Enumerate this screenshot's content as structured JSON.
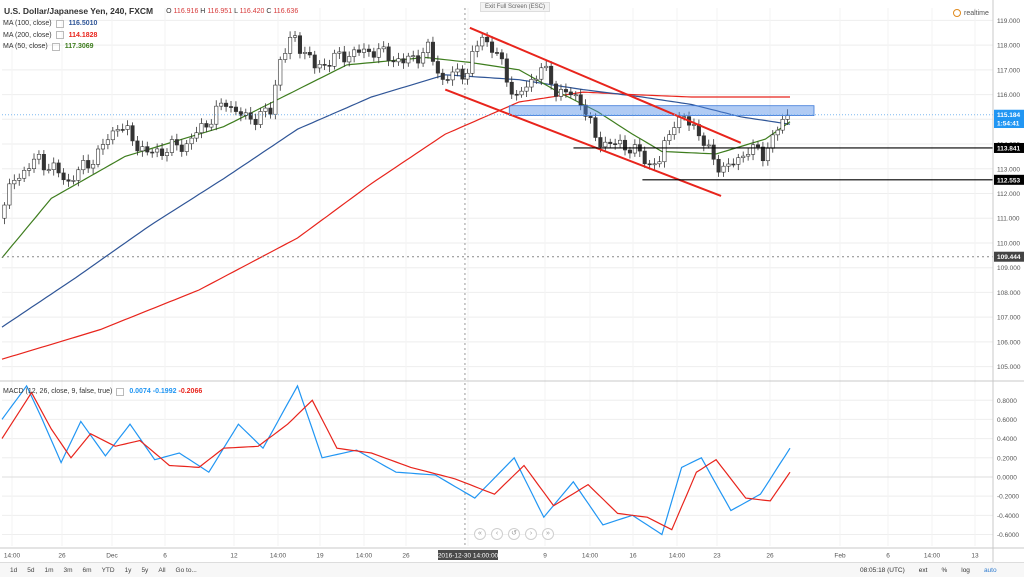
{
  "header": {
    "symbol": "U.S. Dollar/Japanese Yen, 240, FXCM",
    "open_label": "O",
    "open": "116.916",
    "high_label": "H",
    "high": "116.951",
    "low_label": "L",
    "low": "116.420",
    "close_label": "C",
    "close": "116.636",
    "exit_fullscreen": "Exit Full Screen (ESC)",
    "realtime_label": "realtime"
  },
  "legend": [
    {
      "name": "MA (100, close)",
      "value": "116.5010",
      "color": "#2f5597"
    },
    {
      "name": "MA (200, close)",
      "value": "114.1828",
      "color": "#e8241c"
    },
    {
      "name": "MA (50, close)",
      "value": "117.3069",
      "color": "#3e7d1e"
    }
  ],
  "macd_legend": {
    "name": "MACD (12, 26, close, 9, false, true)",
    "values": [
      "0.0074",
      "-0.1992",
      "-0.2066"
    ],
    "colors": [
      "#2196f3",
      "#2196f3",
      "#e8241c"
    ]
  },
  "price_badges": [
    {
      "value": "115.184",
      "color": "#2196f3"
    },
    {
      "value": "1:54:41",
      "color": "#2196f3"
    },
    {
      "value": "113.841",
      "color": "#000000"
    },
    {
      "value": "112.553",
      "color": "#000000"
    },
    {
      "value": "109.444",
      "color": "#444444"
    }
  ],
  "x_ticks": [
    "14:00",
    "26",
    "Dec",
    "6",
    "12",
    "14:00",
    "19",
    "14:00",
    "26",
    "2016-12-30 14:00:00",
    "9",
    "14:00",
    "16",
    "14:00",
    "23",
    "26",
    "Feb",
    "6",
    "14:00",
    "13"
  ],
  "bottom_bar": {
    "timeframes": [
      "1d",
      "5d",
      "1m",
      "3m",
      "6m",
      "YTD",
      "1y",
      "5y",
      "All",
      "Go to..."
    ],
    "clock": "08:05:18 (UTC)",
    "toggles": [
      "ext",
      "%",
      "log",
      "auto"
    ]
  },
  "nav_buttons": [
    "«",
    "‹",
    "↺",
    "›",
    "»"
  ],
  "chart_data": {
    "type": "candlestick",
    "price_axis": {
      "ylim": [
        104.5,
        119.5
      ],
      "ticks": [
        "119.000",
        "118.000",
        "117.000",
        "116.000",
        "115.000",
        "114.000",
        "113.000",
        "112.000",
        "111.000",
        "110.000",
        "109.000",
        "108.000",
        "107.000",
        "106.000",
        "105.000"
      ]
    },
    "macd_axis": {
      "ylim": [
        -0.72,
        0.98
      ],
      "ticks": [
        "0.8000",
        "0.6000",
        "0.4000",
        "0.2000",
        "0.0000",
        "-0.2000",
        "-0.4000",
        "-0.6000"
      ]
    },
    "candle_count": 160,
    "close_path": [
      [
        0,
        111.0
      ],
      [
        3,
        112.6
      ],
      [
        8,
        113.4
      ],
      [
        14,
        112.5
      ],
      [
        20,
        113.6
      ],
      [
        24,
        114.8
      ],
      [
        30,
        113.6
      ],
      [
        38,
        114.0
      ],
      [
        46,
        115.7
      ],
      [
        50,
        115.0
      ],
      [
        55,
        115.3
      ],
      [
        57,
        117.5
      ],
      [
        60,
        118.3
      ],
      [
        64,
        117.1
      ],
      [
        70,
        117.6
      ],
      [
        76,
        117.8
      ],
      [
        82,
        117.3
      ],
      [
        87,
        117.8
      ],
      [
        90,
        116.6
      ],
      [
        95,
        117.0
      ],
      [
        98,
        118.4
      ],
      [
        101,
        117.6
      ],
      [
        105,
        115.8
      ],
      [
        110,
        117.1
      ],
      [
        113,
        116.2
      ],
      [
        118,
        115.8
      ],
      [
        121,
        114.2
      ],
      [
        124,
        114.0
      ],
      [
        128,
        113.9
      ],
      [
        132,
        113.2
      ],
      [
        134,
        113.3
      ],
      [
        137,
        115.0
      ],
      [
        141,
        114.8
      ],
      [
        145,
        113.3
      ],
      [
        148,
        113.0
      ],
      [
        152,
        113.8
      ],
      [
        155,
        113.6
      ],
      [
        160,
        115.2
      ]
    ],
    "ma50_path": [
      [
        0,
        109.4
      ],
      [
        10,
        111.8
      ],
      [
        25,
        113.5
      ],
      [
        45,
        114.7
      ],
      [
        58,
        116.0
      ],
      [
        70,
        117.2
      ],
      [
        86,
        117.5
      ],
      [
        95,
        117.3
      ],
      [
        105,
        117.0
      ],
      [
        113,
        116.1
      ],
      [
        121,
        115.3
      ],
      [
        128,
        114.4
      ],
      [
        134,
        113.7
      ],
      [
        145,
        113.6
      ],
      [
        155,
        114.2
      ],
      [
        160,
        114.9
      ]
    ],
    "ma100_path": [
      [
        0,
        106.6
      ],
      [
        15,
        108.6
      ],
      [
        30,
        110.7
      ],
      [
        45,
        112.6
      ],
      [
        60,
        114.6
      ],
      [
        75,
        115.9
      ],
      [
        90,
        116.8
      ],
      [
        105,
        116.6
      ],
      [
        118,
        116.2
      ],
      [
        130,
        115.9
      ],
      [
        140,
        115.6
      ],
      [
        150,
        115.1
      ],
      [
        160,
        114.8
      ]
    ],
    "ma200_path": [
      [
        0,
        105.3
      ],
      [
        20,
        106.5
      ],
      [
        40,
        108.1
      ],
      [
        60,
        110.2
      ],
      [
        75,
        112.4
      ],
      [
        90,
        114.4
      ],
      [
        105,
        115.7
      ],
      [
        118,
        116.1
      ],
      [
        128,
        116.0
      ],
      [
        140,
        115.9
      ],
      [
        160,
        115.9
      ]
    ],
    "macd_path": [
      [
        0,
        0.6
      ],
      [
        5,
        0.95
      ],
      [
        8,
        0.62
      ],
      [
        12,
        0.15
      ],
      [
        16,
        0.58
      ],
      [
        21,
        0.22
      ],
      [
        26,
        0.55
      ],
      [
        31,
        0.18
      ],
      [
        36,
        0.25
      ],
      [
        42,
        0.05
      ],
      [
        48,
        0.55
      ],
      [
        53,
        0.3
      ],
      [
        60,
        0.95
      ],
      [
        65,
        0.2
      ],
      [
        72,
        0.28
      ],
      [
        80,
        0.05
      ],
      [
        88,
        0.02
      ],
      [
        96,
        -0.22
      ],
      [
        104,
        0.2
      ],
      [
        110,
        -0.42
      ],
      [
        116,
        -0.05
      ],
      [
        122,
        -0.5
      ],
      [
        128,
        -0.4
      ],
      [
        134,
        -0.6
      ],
      [
        138,
        0.1
      ],
      [
        142,
        0.2
      ],
      [
        148,
        -0.35
      ],
      [
        154,
        -0.18
      ],
      [
        160,
        0.3
      ]
    ],
    "signal_path": [
      [
        0,
        0.4
      ],
      [
        6,
        0.88
      ],
      [
        10,
        0.5
      ],
      [
        14,
        0.2
      ],
      [
        18,
        0.45
      ],
      [
        23,
        0.32
      ],
      [
        28,
        0.38
      ],
      [
        34,
        0.12
      ],
      [
        40,
        0.1
      ],
      [
        45,
        0.3
      ],
      [
        52,
        0.32
      ],
      [
        58,
        0.55
      ],
      [
        63,
        0.8
      ],
      [
        68,
        0.3
      ],
      [
        75,
        0.25
      ],
      [
        83,
        0.1
      ],
      [
        92,
        -0.02
      ],
      [
        100,
        -0.18
      ],
      [
        106,
        0.12
      ],
      [
        112,
        -0.3
      ],
      [
        119,
        -0.08
      ],
      [
        125,
        -0.38
      ],
      [
        131,
        -0.42
      ],
      [
        136,
        -0.55
      ],
      [
        141,
        0.05
      ],
      [
        145,
        0.18
      ],
      [
        151,
        -0.22
      ],
      [
        156,
        -0.25
      ],
      [
        160,
        0.05
      ]
    ],
    "annotations": {
      "resistance_zone": {
        "start": 103,
        "end": 160,
        "low": 115.15,
        "high": 115.55
      },
      "channel_upper": [
        [
          95,
          118.7
        ],
        [
          150,
          114.05
        ]
      ],
      "channel_lower": [
        [
          90,
          116.2
        ],
        [
          146,
          111.9
        ]
      ],
      "support_lines": [
        {
          "start": 114,
          "end": 159,
          "price": 113.841
        },
        {
          "start": 128,
          "end": 160,
          "price": 112.553
        }
      ],
      "dashed_level": 109.444,
      "crosshair_index": 94
    }
  }
}
